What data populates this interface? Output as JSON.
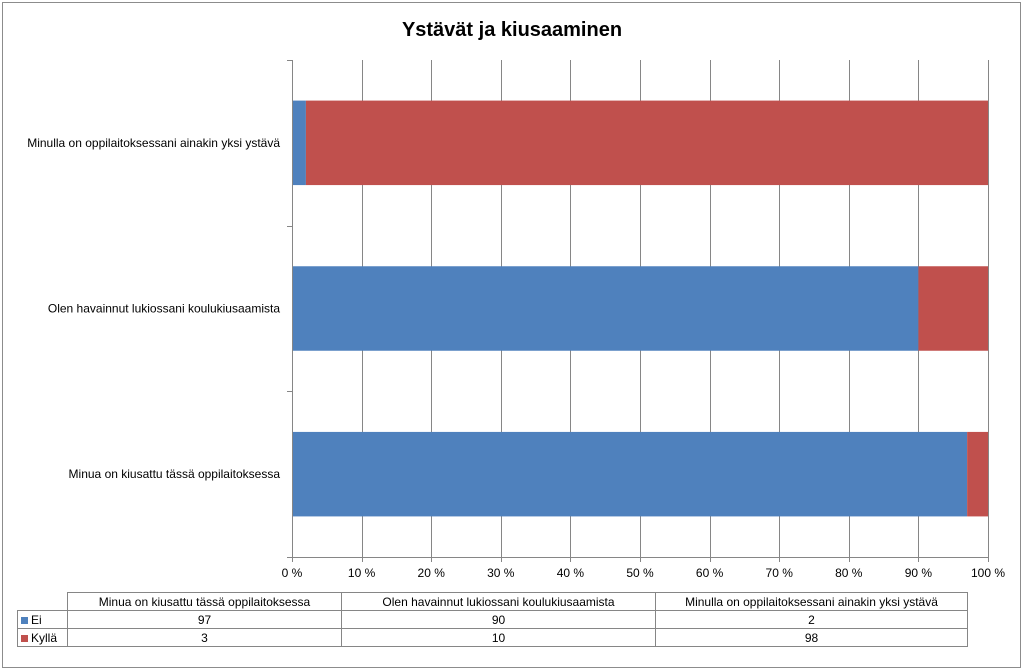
{
  "chart_data": {
    "type": "bar",
    "orientation": "horizontal",
    "stacked": "percent",
    "title": "Ystävät ja kiusaaminen",
    "categories": [
      "Minua on kiusattu tässä oppilaitoksessa",
      "Olen havainnut lukiossani koulukiusaamista",
      "Minulla on oppilaitoksessani ainakin yksi ystävä"
    ],
    "series": [
      {
        "name": "Ei",
        "values": [
          97,
          90,
          2
        ],
        "color": "#4f81bd"
      },
      {
        "name": "Kyllä",
        "values": [
          3,
          10,
          98
        ],
        "color": "#c0504d"
      }
    ],
    "xlim": [
      0,
      100
    ],
    "x_ticks": [
      "0 %",
      "10 %",
      "20 %",
      "30 %",
      "40 %",
      "50 %",
      "60 %",
      "70 %",
      "80 %",
      "90 %",
      "100 %"
    ],
    "grid": true,
    "legend": "data table below chart"
  }
}
